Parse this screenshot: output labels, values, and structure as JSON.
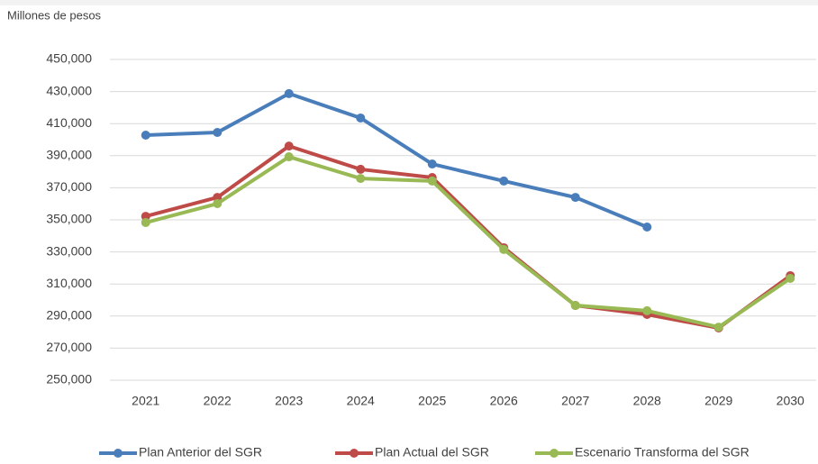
{
  "chart_data": {
    "type": "line",
    "y_axis_label": "Millones de pesos",
    "categories": [
      "2021",
      "2022",
      "2023",
      "2024",
      "2025",
      "2026",
      "2027",
      "2028",
      "2029",
      "2030"
    ],
    "series": [
      {
        "name": "Plan Anterior del SGR",
        "color": "#4a7ebb",
        "values": [
          402800,
          404500,
          428700,
          413500,
          384800,
          374200,
          364000,
          345500,
          null,
          null
        ]
      },
      {
        "name": "Plan Actual del SGR",
        "color": "#be4b48",
        "values": [
          352200,
          364000,
          396000,
          381500,
          376400,
          332600,
          296600,
          291000,
          282600,
          315200
        ]
      },
      {
        "name": "Escenario Transforma del SGR",
        "color": "#98b954",
        "values": [
          348300,
          360100,
          389300,
          375800,
          374200,
          331500,
          296600,
          293300,
          283100,
          313500
        ]
      }
    ],
    "ylim": [
      250000,
      450000
    ],
    "yticks": [
      {
        "value": 250000,
        "label": "250,000"
      },
      {
        "value": 270000,
        "label": "270,000"
      },
      {
        "value": 290000,
        "label": "290,000"
      },
      {
        "value": 310000,
        "label": "310,000"
      },
      {
        "value": 330000,
        "label": "330,000"
      },
      {
        "value": 350000,
        "label": "350,000"
      },
      {
        "value": 370000,
        "label": "370,000"
      },
      {
        "value": 390000,
        "label": "390,000"
      },
      {
        "value": 410000,
        "label": "410,000"
      },
      {
        "value": 430000,
        "label": "430,000"
      },
      {
        "value": 450000,
        "label": "450,000"
      }
    ],
    "grid": true,
    "legend": "bottom"
  }
}
